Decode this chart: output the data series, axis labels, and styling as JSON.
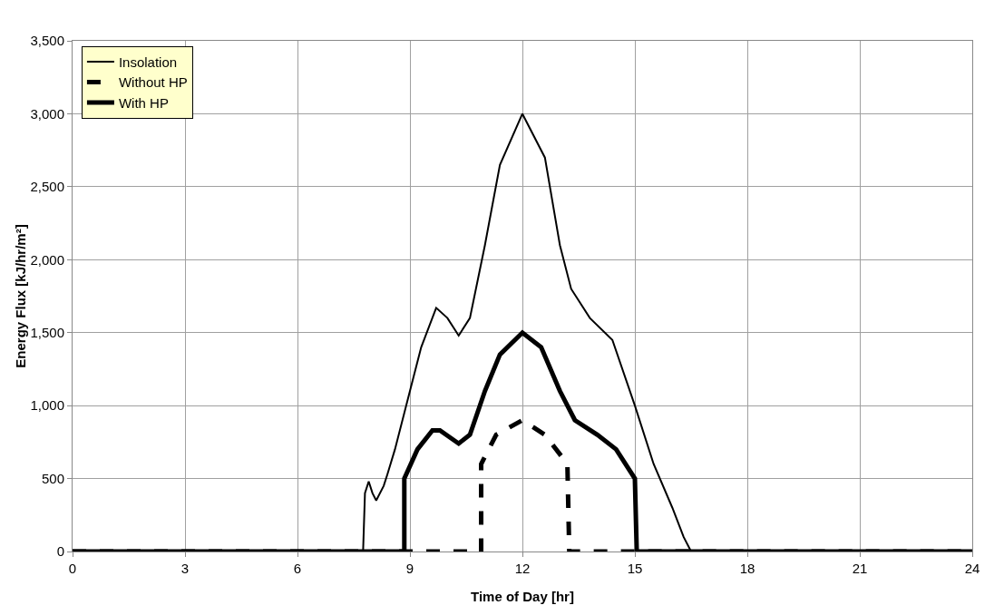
{
  "chart_data": {
    "type": "line",
    "xlabel": "Time of Day [hr]",
    "ylabel": "Energy Flux [kJ/hr/m²]",
    "xlim": [
      0,
      24
    ],
    "xticks": [
      0,
      3,
      6,
      9,
      12,
      15,
      18,
      21,
      24
    ],
    "ylim": [
      0,
      3500
    ],
    "yticks": [
      0,
      {
        "value": 500,
        "label": "500"
      },
      {
        "value": 1000,
        "label": "1,000"
      },
      {
        "value": 1500,
        "label": "1,500"
      },
      {
        "value": 2000,
        "label": "2,000"
      },
      {
        "value": 2500,
        "label": "2,500"
      },
      {
        "value": 3000,
        "label": "3,000"
      },
      {
        "value": 3500,
        "label": "3,500"
      }
    ],
    "grid": true,
    "legend": "top left",
    "marker": "none",
    "series": [
      {
        "name": "Insolation",
        "color": "#000000",
        "line_style": "solid",
        "x": [
          0,
          7.75,
          7.8,
          7.9,
          8.0,
          8.1,
          8.3,
          8.4,
          8.6,
          9.0,
          9.3,
          9.7,
          10.0,
          10.3,
          10.6,
          11.0,
          11.4,
          12.0,
          12.6,
          13.0,
          13.3,
          13.8,
          14.4,
          15.0,
          15.5,
          16.0,
          16.3,
          16.5,
          24
        ],
        "values": [
          0,
          0,
          400,
          480,
          400,
          350,
          450,
          530,
          700,
          1100,
          1400,
          1670,
          1600,
          1480,
          1600,
          2100,
          2650,
          3000,
          2700,
          2100,
          1800,
          1600,
          1450,
          1000,
          600,
          300,
          100,
          0,
          0
        ]
      },
      {
        "name": "Without HP",
        "color": "#000000",
        "line_style": "dashed",
        "x": [
          0,
          10.9,
          10.9,
          11.3,
          12.0,
          12.6,
          13.2,
          13.25,
          24
        ],
        "values": [
          0,
          0,
          600,
          800,
          900,
          800,
          600,
          0,
          0
        ]
      },
      {
        "name": "With HP",
        "color": "#000000",
        "line_style": "solid",
        "x": [
          0,
          8.85,
          8.85,
          9.2,
          9.6,
          9.8,
          10.3,
          10.6,
          11.0,
          11.4,
          12.0,
          12.5,
          13.0,
          13.4,
          14.0,
          14.5,
          15.0,
          15.05,
          24
        ],
        "values": [
          0,
          0,
          500,
          700,
          830,
          830,
          740,
          800,
          1100,
          1350,
          1500,
          1400,
          1100,
          900,
          800,
          700,
          500,
          0,
          0
        ]
      }
    ]
  }
}
